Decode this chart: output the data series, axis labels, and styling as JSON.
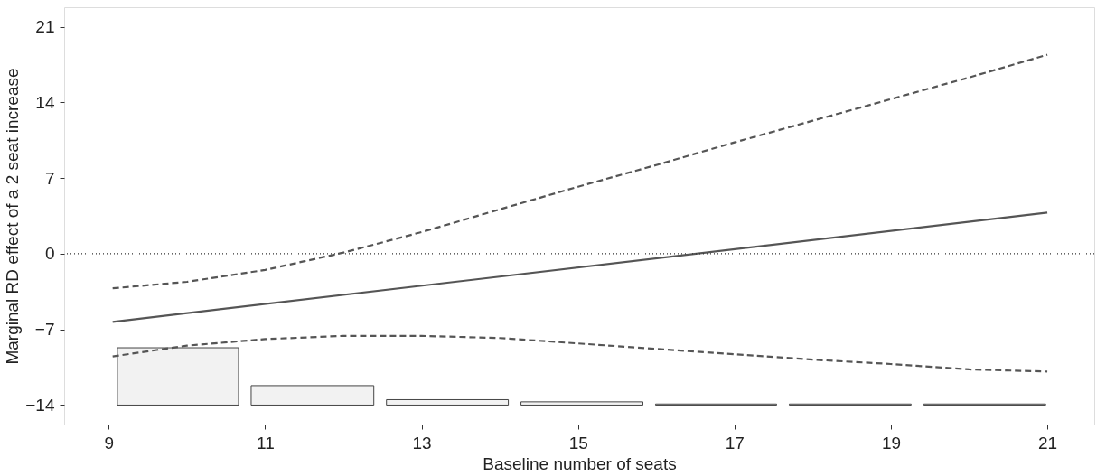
{
  "chart_data": {
    "type": "line",
    "xlabel": "Baseline number of seats",
    "ylabel": "Marginal RD effect of a 2 seat increase",
    "xlim": [
      8.43,
      21.6
    ],
    "ylim": [
      -15.8,
      22.8
    ],
    "xticks": [
      9,
      11,
      13,
      15,
      17,
      19,
      21
    ],
    "yticks": [
      -14,
      -7,
      0,
      7,
      14,
      21
    ],
    "grid": false,
    "series": [
      {
        "type": "histogram",
        "color": "#f2f2f2",
        "bins": [
          9.03,
          10.74,
          12.47,
          14.19,
          15.91,
          17.62,
          19.34,
          21.06
        ],
        "base": [
          -14,
          -14,
          -14,
          -14,
          -14,
          -14,
          -14
        ],
        "values": [
          5.3,
          1.8,
          0.5,
          0.3,
          0.1,
          0.1,
          0.1
        ]
      },
      {
        "color": "#555555",
        "line_style": "solid",
        "x": [
          9.05,
          21
        ],
        "values": [
          -6.3,
          3.8
        ]
      },
      {
        "color": "#555555",
        "line_style": "dashed",
        "x": [
          9.05,
          10,
          11,
          12,
          13,
          14,
          15,
          16,
          17,
          18,
          19,
          20,
          21
        ],
        "values": [
          -3.2,
          -2.6,
          -1.5,
          0.1,
          2.0,
          4.1,
          6.2,
          8.2,
          10.3,
          12.3,
          14.3,
          16.3,
          18.4
        ]
      },
      {
        "color": "#555555",
        "line_style": "dashed",
        "x": [
          9.05,
          10,
          11,
          12,
          13,
          14,
          15,
          16,
          17,
          18,
          19,
          20,
          21
        ],
        "values": [
          -9.5,
          -8.5,
          -7.9,
          -7.6,
          -7.6,
          -7.8,
          -8.3,
          -8.8,
          -9.3,
          -9.8,
          -10.2,
          -10.7,
          -10.9
        ]
      }
    ],
    "ref_lines": [
      {
        "axis": "y",
        "value": 0,
        "color": "#333333",
        "line_style": "dotted"
      }
    ]
  }
}
